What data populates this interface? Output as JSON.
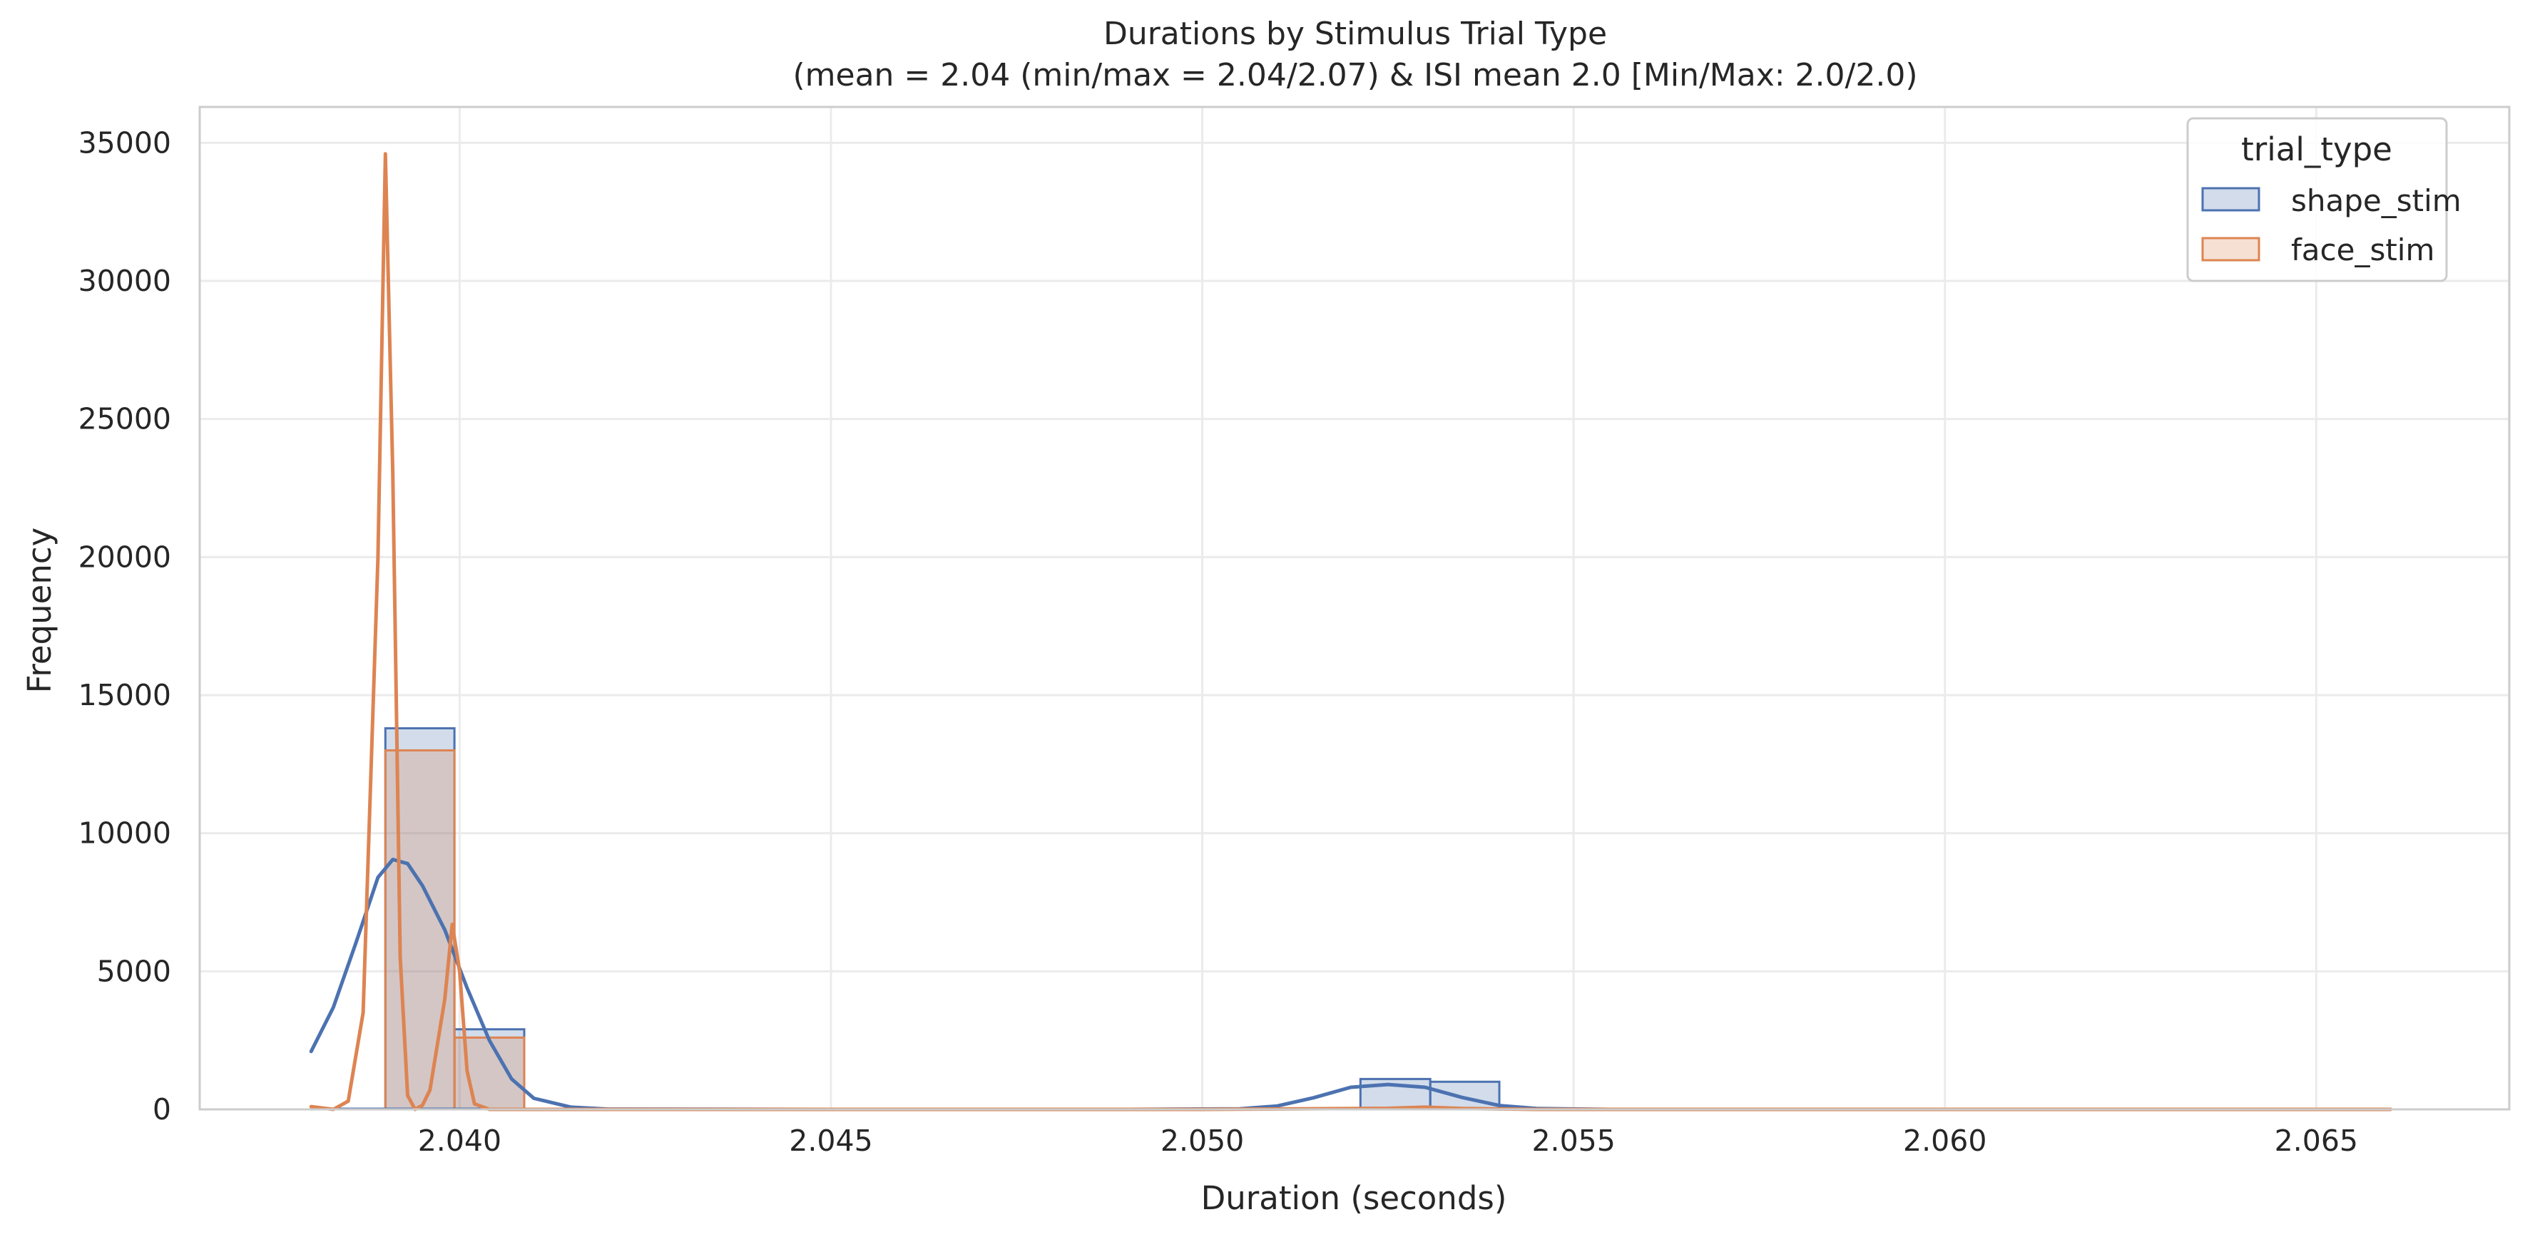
{
  "chart_data": {
    "type": "bar",
    "title": "Durations by Stimulus Trial Type",
    "subtitle": "(mean = 2.04 (min/max = 2.04/2.07) & ISI mean 2.0 [Min/Max: 2.0/2.0)",
    "xlabel": "Duration (seconds)",
    "ylabel": "Frequency",
    "xlim": [
      2.0365,
      2.0676
    ],
    "ylim": [
      0,
      36300
    ],
    "xticks": [
      2.04,
      2.045,
      2.05,
      2.055,
      2.06,
      2.065
    ],
    "xtick_labels": [
      "2.040",
      "2.045",
      "2.050",
      "2.055",
      "2.060",
      "2.065"
    ],
    "yticks": [
      0,
      5000,
      10000,
      15000,
      20000,
      25000,
      30000,
      35000
    ],
    "ytick_labels": [
      "0",
      "5000",
      "10000",
      "15000",
      "20000",
      "25000",
      "30000",
      "35000"
    ],
    "grid": true,
    "legend": {
      "title": "trial_type",
      "placement": "top-right",
      "entries": [
        "shape_stim",
        "face_stim"
      ]
    },
    "series": [
      {
        "name": "shape_stim",
        "color": "#4c72b0",
        "bins": [
          {
            "x0": 2.039,
            "x1": 2.03993,
            "count": 13800
          },
          {
            "x0": 2.03993,
            "x1": 2.04087,
            "count": 2900
          },
          {
            "x0": 2.05213,
            "x1": 2.05307,
            "count": 1100
          },
          {
            "x0": 2.05307,
            "x1": 2.054,
            "count": 1000
          }
        ],
        "kde": [
          [
            2.038,
            2100
          ],
          [
            2.0383,
            3700
          ],
          [
            2.0386,
            6000
          ],
          [
            2.0389,
            8400
          ],
          [
            2.0391,
            9050
          ],
          [
            2.0393,
            8900
          ],
          [
            2.0395,
            8100
          ],
          [
            2.0398,
            6500
          ],
          [
            2.0401,
            4400
          ],
          [
            2.0404,
            2500
          ],
          [
            2.0407,
            1100
          ],
          [
            2.041,
            400
          ],
          [
            2.0415,
            80
          ],
          [
            2.042,
            10
          ],
          [
            2.045,
            0
          ],
          [
            2.049,
            0
          ],
          [
            2.0505,
            20
          ],
          [
            2.051,
            120
          ],
          [
            2.0515,
            420
          ],
          [
            2.052,
            800
          ],
          [
            2.0525,
            900
          ],
          [
            2.053,
            800
          ],
          [
            2.0535,
            430
          ],
          [
            2.054,
            140
          ],
          [
            2.0545,
            30
          ],
          [
            2.0555,
            0
          ],
          [
            2.066,
            0
          ]
        ]
      },
      {
        "name": "face_stim",
        "color": "#dd8452",
        "bins": [
          {
            "x0": 2.039,
            "x1": 2.03993,
            "count": 13000
          },
          {
            "x0": 2.03993,
            "x1": 2.04087,
            "count": 2600
          }
        ],
        "kde": [
          [
            2.038,
            100
          ],
          [
            2.0383,
            0
          ],
          [
            2.0385,
            300
          ],
          [
            2.0387,
            3500
          ],
          [
            2.0389,
            20000
          ],
          [
            2.039,
            34600
          ],
          [
            2.0391,
            23000
          ],
          [
            2.0392,
            5500
          ],
          [
            2.0393,
            500
          ],
          [
            2.0394,
            0
          ],
          [
            2.0395,
            150
          ],
          [
            2.0396,
            700
          ],
          [
            2.0398,
            4000
          ],
          [
            2.0399,
            6700
          ],
          [
            2.04,
            5000
          ],
          [
            2.0401,
            1400
          ],
          [
            2.0402,
            200
          ],
          [
            2.0404,
            0
          ],
          [
            2.05,
            0
          ],
          [
            2.0525,
            40
          ],
          [
            2.053,
            80
          ],
          [
            2.0535,
            30
          ],
          [
            2.0545,
            0
          ],
          [
            2.066,
            0
          ]
        ]
      }
    ]
  }
}
